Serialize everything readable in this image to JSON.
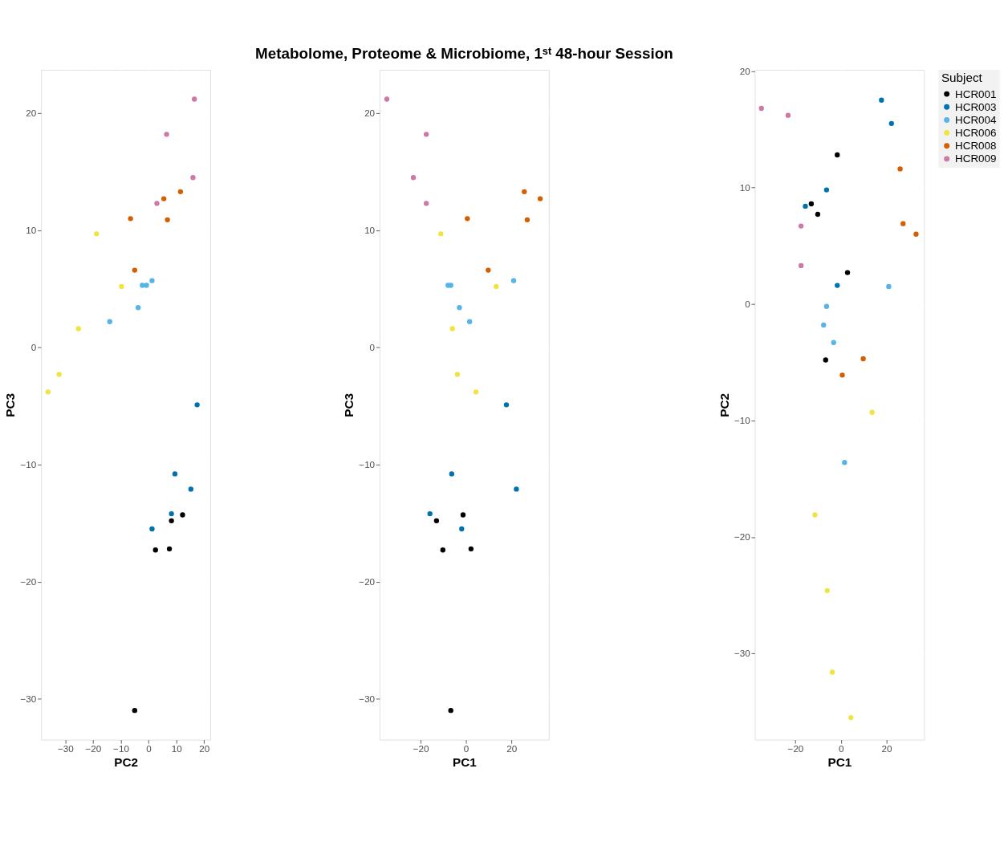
{
  "chart_data": [
    {
      "type": "scatter",
      "xlabel": "PC2",
      "ylabel": "PC3",
      "xlim": [
        -38.75,
        22.25
      ],
      "ylim": [
        -33.5,
        23.7
      ],
      "xticks": [
        -30,
        -20,
        -10,
        0,
        10,
        20
      ],
      "yticks": [
        -30,
        -20,
        -10,
        0,
        10,
        20
      ],
      "grid": true,
      "marker": "circle",
      "series": [
        {
          "color": "#000000",
          "x": [
            12.25,
            8.25,
            2.5,
            7.5,
            -5
          ],
          "values": [
            -14.3,
            -14.8,
            -17.3,
            -17.2,
            -31
          ]
        },
        {
          "color": "#0072B2",
          "x": [
            17.5,
            9.5,
            15.25,
            8.25,
            1.25
          ],
          "values": [
            -4.9,
            -10.8,
            -12.1,
            -14.2,
            -15.5
          ]
        },
        {
          "color": "#56B4E9",
          "x": [
            1.25,
            -0.75,
            -2.25,
            -3.75,
            -14
          ],
          "values": [
            5.7,
            5.3,
            5.3,
            3.4,
            2.2
          ]
        },
        {
          "color": "#F0E442",
          "x": [
            -18.75,
            -9.75,
            -25.25,
            -32.25,
            -36.25
          ],
          "values": [
            9.7,
            5.2,
            1.6,
            -2.3,
            -3.8
          ]
        },
        {
          "color": "#D55E00",
          "x": [
            11.5,
            5.5,
            -6.5,
            6.8,
            -5
          ],
          "values": [
            13.3,
            12.7,
            11.0,
            10.9,
            6.6
          ]
        },
        {
          "color": "#CC79A7",
          "x": [
            16.5,
            6.5,
            16,
            3
          ],
          "values": [
            21.2,
            18.2,
            14.5,
            12.3
          ]
        }
      ]
    },
    {
      "type": "scatter",
      "title": "Metabolome, Proteome & Microbiome, 1ˢᵗ 48-hour Session",
      "xlabel": "PC1",
      "ylabel": "PC3",
      "xlim": [
        -38.1,
        36.5
      ],
      "ylim": [
        -33.5,
        23.7
      ],
      "xticks": [
        -20,
        0,
        20
      ],
      "yticks": [
        -30,
        -20,
        -10,
        0,
        10,
        20
      ],
      "grid": true,
      "marker": "circle",
      "series": [
        {
          "color": "#000000",
          "x": [
            -1.3,
            -13,
            -10.2,
            2.2,
            -6.7
          ],
          "values": [
            -14.3,
            -14.8,
            -17.3,
            -17.2,
            -31
          ]
        },
        {
          "color": "#0072B2",
          "x": [
            17.8,
            -6.3,
            22.2,
            -15.9,
            -1.9
          ],
          "values": [
            -4.9,
            -10.8,
            -12.1,
            -14.2,
            -15.5
          ]
        },
        {
          "color": "#56B4E9",
          "x": [
            21,
            -6.7,
            -7.9,
            -2.9,
            1.6
          ],
          "values": [
            5.7,
            5.3,
            5.3,
            3.4,
            2.2
          ]
        },
        {
          "color": "#F0E442",
          "x": [
            -11.1,
            13.3,
            -6,
            -3.8,
            4.4
          ],
          "values": [
            9.7,
            5.2,
            1.6,
            -2.3,
            -3.8
          ]
        },
        {
          "color": "#D55E00",
          "x": [
            25.7,
            32.7,
            0.6,
            27,
            9.8
          ],
          "values": [
            13.3,
            12.7,
            11.0,
            10.9,
            6.6
          ]
        },
        {
          "color": "#CC79A7",
          "x": [
            -34.9,
            -17.5,
            -23.2,
            -17.5
          ],
          "values": [
            21.2,
            18.2,
            14.5,
            12.3
          ]
        }
      ]
    },
    {
      "type": "scatter",
      "xlabel": "PC1",
      "ylabel": "PC2",
      "xlim": [
        -37.8,
        36.5
      ],
      "ylim": [
        -37.4,
        20.1
      ],
      "xticks": [
        -20,
        0,
        20
      ],
      "yticks": [
        -30,
        -20,
        -10,
        0,
        10,
        20
      ],
      "grid": true,
      "marker": "circle",
      "legend": "right",
      "legend_title": "Subject",
      "series": [
        {
          "name": "HCR001",
          "color": "#000000",
          "x": [
            -1.6,
            -13,
            -10.2,
            2.9,
            -6.7
          ],
          "values": [
            12.8,
            8.6,
            7.7,
            2.7,
            -4.8
          ]
        },
        {
          "name": "HCR003",
          "color": "#0072B2",
          "x": [
            17.8,
            22.2,
            -6.3,
            -15.6,
            -1.6
          ],
          "values": [
            17.5,
            15.5,
            9.8,
            8.4,
            1.6
          ]
        },
        {
          "name": "HCR004",
          "color": "#56B4E9",
          "x": [
            21,
            -6.3,
            -7.6,
            -3.2,
            1.6
          ],
          "values": [
            1.5,
            -0.2,
            -1.8,
            -3.3,
            -13.6
          ]
        },
        {
          "name": "HCR006",
          "color": "#F0E442",
          "x": [
            13.7,
            -11.4,
            -6,
            -3.8,
            4.4
          ],
          "values": [
            -9.3,
            -18.1,
            -24.6,
            -31.6,
            -35.5
          ]
        },
        {
          "name": "HCR008",
          "color": "#D55E00",
          "x": [
            26,
            27.3,
            33,
            9.8,
            0.6
          ],
          "values": [
            11.6,
            6.9,
            6.0,
            -4.7,
            -6.1
          ]
        },
        {
          "name": "HCR009",
          "color": "#CC79A7",
          "x": [
            -34.9,
            -23.2,
            -17.5,
            -17.5
          ],
          "values": [
            16.8,
            16.2,
            6.7,
            3.3
          ]
        }
      ]
    }
  ]
}
